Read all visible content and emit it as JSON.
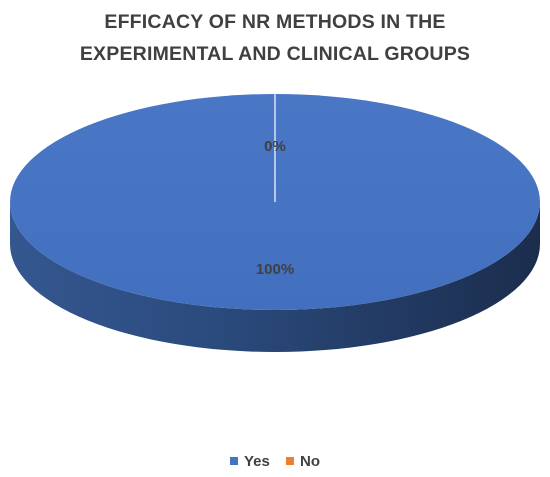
{
  "chart_data": {
    "type": "pie",
    "title_lines": [
      "EFFICACY OF NR METHODS IN THE",
      "EXPERIMENTAL AND CLINICAL GROUPS"
    ],
    "slices": [
      {
        "name": "Yes",
        "value": 100,
        "label": "100%",
        "color": "#4472c4"
      },
      {
        "name": "No",
        "value": 0,
        "label": "0%",
        "color": "#ed7d31"
      }
    ],
    "legend_placement": "bottom",
    "style": "3d"
  }
}
